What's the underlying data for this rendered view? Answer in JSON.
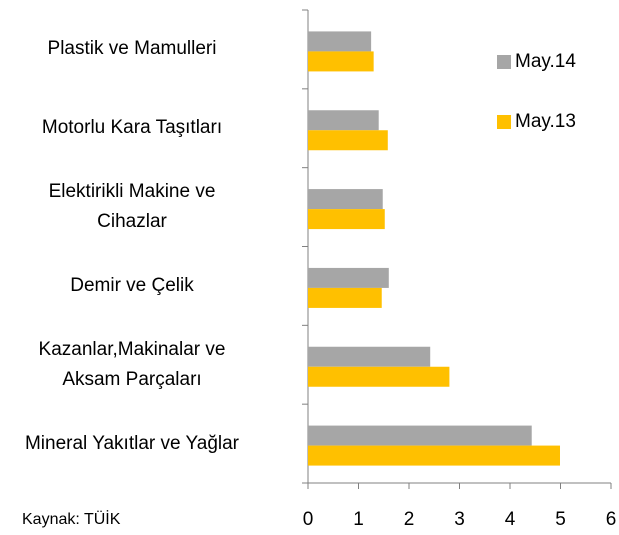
{
  "chart_data": {
    "type": "hbar",
    "categories": [
      "Plastik ve Mamulleri",
      "Motorlu Kara Taşıtları",
      "Elektirikli Makine ve\nCihazlar",
      "Demir ve Çelik",
      "Kazanlar,Makinalar ve\nAksam Parçaları",
      "Mineral Yakıtlar ve Yağlar"
    ],
    "series": [
      {
        "name": "May.14",
        "color": "#a6a6a6",
        "values": [
          1.25,
          1.4,
          1.48,
          1.6,
          2.42,
          4.43
        ]
      },
      {
        "name": "May.13",
        "color": "#ffc000",
        "values": [
          1.3,
          1.58,
          1.52,
          1.46,
          2.8,
          4.99
        ]
      }
    ],
    "xlim": [
      0,
      6
    ],
    "xticks": [
      0,
      1,
      2,
      3,
      4,
      5,
      6
    ],
    "source": "Kaynak: TÜİK"
  }
}
